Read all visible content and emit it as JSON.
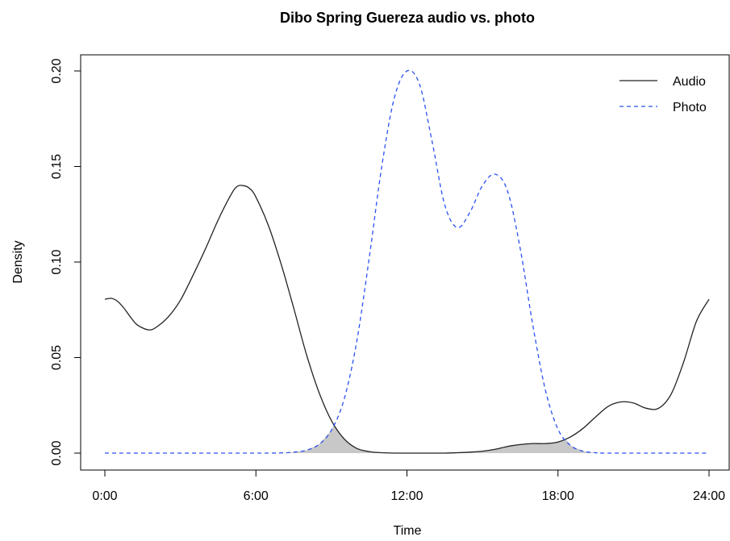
{
  "chart_data": {
    "type": "line",
    "title": "Dibo Spring Guereza audio vs. photo",
    "xlabel": "Time",
    "ylabel": "Density",
    "xlim": [
      0,
      24
    ],
    "ylim": [
      0,
      0.2
    ],
    "xticks": [
      0,
      6,
      12,
      18,
      24
    ],
    "xtick_labels": [
      "0:00",
      "6:00",
      "12:00",
      "18:00",
      "24:00"
    ],
    "yticks": [
      0,
      0.05,
      0.1,
      0.15,
      0.2
    ],
    "ytick_labels": [
      "0.00",
      "0.05",
      "0.10",
      "0.15",
      "0.20"
    ],
    "legend_position": "top-right",
    "overlap_shaded": true,
    "overlap_color": "#c8c8c8",
    "series": [
      {
        "name": "Audio",
        "color": "#222222",
        "style": "solid",
        "x": [
          0,
          0.25,
          0.5,
          0.75,
          1.0,
          1.25,
          1.5,
          1.75,
          2.0,
          2.5,
          3.0,
          3.5,
          4.0,
          4.5,
          5.0,
          5.25,
          5.5,
          5.75,
          6.0,
          6.5,
          7.0,
          7.5,
          8.0,
          8.5,
          9.0,
          9.5,
          10.0,
          10.5,
          11.0,
          11.5,
          12.0,
          12.5,
          13.0,
          13.5,
          14.0,
          14.5,
          15.0,
          15.5,
          16.0,
          16.5,
          17.0,
          17.5,
          18.0,
          18.5,
          19.0,
          19.5,
          20.0,
          20.5,
          21.0,
          21.5,
          22.0,
          22.5,
          23.0,
          23.5,
          24.0
        ],
        "y": [
          0.0805,
          0.081,
          0.0795,
          0.076,
          0.0715,
          0.0675,
          0.0655,
          0.0645,
          0.0655,
          0.071,
          0.08,
          0.093,
          0.107,
          0.122,
          0.135,
          0.1395,
          0.14,
          0.1385,
          0.134,
          0.119,
          0.099,
          0.076,
          0.052,
          0.032,
          0.017,
          0.0075,
          0.0025,
          0.0008,
          0.0002,
          0.0,
          0.0,
          0.0,
          0.0,
          0.0,
          0.0002,
          0.0005,
          0.001,
          0.002,
          0.0035,
          0.0045,
          0.005,
          0.005,
          0.0058,
          0.0085,
          0.013,
          0.019,
          0.0245,
          0.0268,
          0.0262,
          0.0235,
          0.0235,
          0.031,
          0.048,
          0.069,
          0.0805
        ]
      },
      {
        "name": "Photo",
        "color": "#2a52f0",
        "style": "dashed",
        "x": [
          0,
          6,
          7,
          7.5,
          8,
          8.5,
          9,
          9.5,
          10,
          10.5,
          11,
          11.5,
          12,
          12.5,
          13,
          13.5,
          14,
          14.5,
          15,
          15.5,
          16,
          16.5,
          17,
          17.5,
          18,
          18.5,
          19,
          19.5,
          20,
          24
        ],
        "y": [
          0,
          0,
          0.0001,
          0.0005,
          0.0015,
          0.0045,
          0.012,
          0.028,
          0.058,
          0.102,
          0.15,
          0.186,
          0.2,
          0.193,
          0.163,
          0.13,
          0.118,
          0.126,
          0.14,
          0.146,
          0.137,
          0.107,
          0.067,
          0.033,
          0.0125,
          0.004,
          0.001,
          0.0002,
          0,
          0
        ]
      }
    ]
  }
}
